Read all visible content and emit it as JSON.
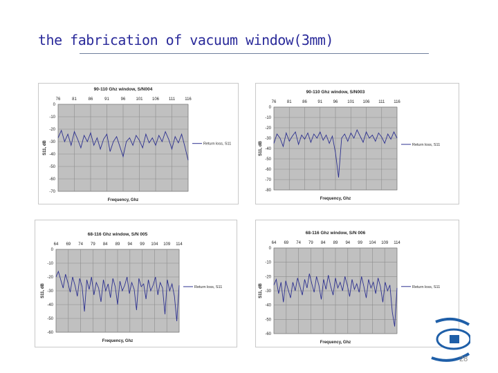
{
  "slide": {
    "title": "the fabrication of vacuum window(3mm)",
    "page_number": "28"
  },
  "colors": {
    "plot_bg": "#c0c0c0",
    "series": "#2b2f8f",
    "title": "#2a2a9a",
    "grid": "#8c8c8c"
  },
  "chart_data": [
    {
      "type": "line",
      "title": "90-110 Ghz window, S/N004",
      "xlabel": "Frequency, Ghz",
      "ylabel": "S11, dB",
      "legend": "Return loss, S11",
      "legend_position": "right",
      "grid": true,
      "x_ticks": [
        "76",
        "81",
        "86",
        "91",
        "96",
        "101",
        "106",
        "111",
        "116"
      ],
      "y_ticks": [
        "0",
        "-10",
        "-20",
        "-30",
        "-40",
        "-50",
        "-60",
        "-70"
      ],
      "xlim": [
        76,
        116
      ],
      "ylim": [
        -70,
        0
      ],
      "series": [
        {
          "x": [
            76,
            77,
            78,
            79,
            80,
            81,
            82,
            83,
            84,
            85,
            86,
            87,
            88,
            89,
            90,
            91,
            92,
            93,
            94,
            95,
            96,
            97,
            98,
            99,
            100,
            101,
            102,
            103,
            104,
            105,
            106,
            107,
            108,
            109,
            110,
            111,
            112,
            113,
            114,
            115,
            116
          ],
          "values": [
            -27,
            -21,
            -30,
            -24,
            -33,
            -22,
            -28,
            -35,
            -25,
            -30,
            -23,
            -33,
            -27,
            -36,
            -28,
            -24,
            -38,
            -30,
            -26,
            -34,
            -42,
            -30,
            -27,
            -33,
            -25,
            -29,
            -35,
            -24,
            -31,
            -27,
            -33,
            -25,
            -30,
            -22,
            -28,
            -36,
            -26,
            -31,
            -24,
            -34,
            -45
          ]
        }
      ]
    },
    {
      "type": "line",
      "title": "90-110 Ghz window, S/N003",
      "xlabel": "Frequency, Ghz",
      "ylabel": "S11, dB",
      "legend": "Return loss, S11",
      "legend_position": "right",
      "grid": true,
      "x_ticks": [
        "76",
        "81",
        "86",
        "91",
        "96",
        "101",
        "106",
        "111",
        "116"
      ],
      "y_ticks": [
        "0",
        "-10",
        "-20",
        "-30",
        "-40",
        "-50",
        "-60",
        "-70",
        "-80"
      ],
      "xlim": [
        76,
        116
      ],
      "ylim": [
        -80,
        0
      ],
      "series": [
        {
          "x": [
            76,
            77,
            78,
            79,
            80,
            81,
            82,
            83,
            84,
            85,
            86,
            87,
            88,
            89,
            90,
            91,
            92,
            93,
            94,
            95,
            96,
            97,
            98,
            99,
            100,
            101,
            102,
            103,
            104,
            105,
            106,
            107,
            108,
            109,
            110,
            111,
            112,
            113,
            114,
            115,
            116
          ],
          "values": [
            -35,
            -26,
            -30,
            -38,
            -25,
            -33,
            -28,
            -24,
            -36,
            -27,
            -31,
            -25,
            -34,
            -26,
            -30,
            -24,
            -32,
            -27,
            -35,
            -28,
            -44,
            -68,
            -30,
            -26,
            -33,
            -25,
            -30,
            -22,
            -28,
            -34,
            -24,
            -30,
            -27,
            -33,
            -25,
            -29,
            -35,
            -26,
            -31,
            -24,
            -30
          ]
        }
      ]
    },
    {
      "type": "line",
      "title": "68-116 Ghz window, S/N 005",
      "xlabel": "Frequency, Ghz",
      "ylabel": "S11, dB",
      "legend": "Return loss, S11",
      "legend_position": "right",
      "grid": true,
      "x_ticks": [
        "64",
        "69",
        "74",
        "79",
        "84",
        "89",
        "94",
        "99",
        "104",
        "109",
        "114"
      ],
      "y_ticks": [
        "0",
        "-10",
        "-20",
        "-30",
        "-40",
        "-50",
        "-60"
      ],
      "xlim": [
        64,
        116
      ],
      "ylim": [
        -60,
        0
      ],
      "series": [
        {
          "x": [
            64,
            65,
            66,
            67,
            68,
            69,
            70,
            71,
            72,
            73,
            74,
            75,
            76,
            77,
            78,
            79,
            80,
            81,
            82,
            83,
            84,
            85,
            86,
            87,
            88,
            89,
            90,
            91,
            92,
            93,
            94,
            95,
            96,
            97,
            98,
            99,
            100,
            101,
            102,
            103,
            104,
            105,
            106,
            107,
            108,
            109,
            110,
            111,
            112,
            113,
            114,
            115,
            116
          ],
          "values": [
            -20,
            -16,
            -22,
            -28,
            -18,
            -24,
            -31,
            -20,
            -26,
            -34,
            -21,
            -27,
            -45,
            -22,
            -29,
            -20,
            -33,
            -24,
            -28,
            -38,
            -22,
            -30,
            -25,
            -35,
            -21,
            -27,
            -40,
            -23,
            -30,
            -26,
            -20,
            -32,
            -24,
            -29,
            -44,
            -21,
            -27,
            -25,
            -36,
            -22,
            -30,
            -26,
            -20,
            -33,
            -24,
            -28,
            -47,
            -22,
            -30,
            -25,
            -34,
            -52,
            -26
          ]
        }
      ]
    },
    {
      "type": "line",
      "title": "68-116 Ghz window, S/N 006",
      "xlabel": "Frequency, Ghz",
      "ylabel": "S11, dB",
      "legend": "Return loss, S11",
      "legend_position": "right",
      "grid": true,
      "x_ticks": [
        "64",
        "69",
        "74",
        "79",
        "84",
        "89",
        "94",
        "99",
        "104",
        "109",
        "114"
      ],
      "y_ticks": [
        "0",
        "-10",
        "-20",
        "-30",
        "-40",
        "-50",
        "-60"
      ],
      "xlim": [
        64,
        116
      ],
      "ylim": [
        -60,
        0
      ],
      "series": [
        {
          "x": [
            64,
            65,
            66,
            67,
            68,
            69,
            70,
            71,
            72,
            73,
            74,
            75,
            76,
            77,
            78,
            79,
            80,
            81,
            82,
            83,
            84,
            85,
            86,
            87,
            88,
            89,
            90,
            91,
            92,
            93,
            94,
            95,
            96,
            97,
            98,
            99,
            100,
            101,
            102,
            103,
            104,
            105,
            106,
            107,
            108,
            109,
            110,
            111,
            112,
            113,
            114,
            115,
            116
          ],
          "values": [
            -26,
            -22,
            -32,
            -24,
            -38,
            -23,
            -29,
            -35,
            -24,
            -30,
            -21,
            -27,
            -33,
            -22,
            -28,
            -18,
            -25,
            -31,
            -20,
            -26,
            -36,
            -22,
            -29,
            -19,
            -27,
            -33,
            -21,
            -28,
            -24,
            -30,
            -20,
            -26,
            -34,
            -22,
            -29,
            -25,
            -31,
            -20,
            -27,
            -35,
            -22,
            -28,
            -24,
            -32,
            -21,
            -27,
            -38,
            -24,
            -30,
            -26,
            -45,
            -55,
            -28
          ]
        }
      ]
    }
  ]
}
